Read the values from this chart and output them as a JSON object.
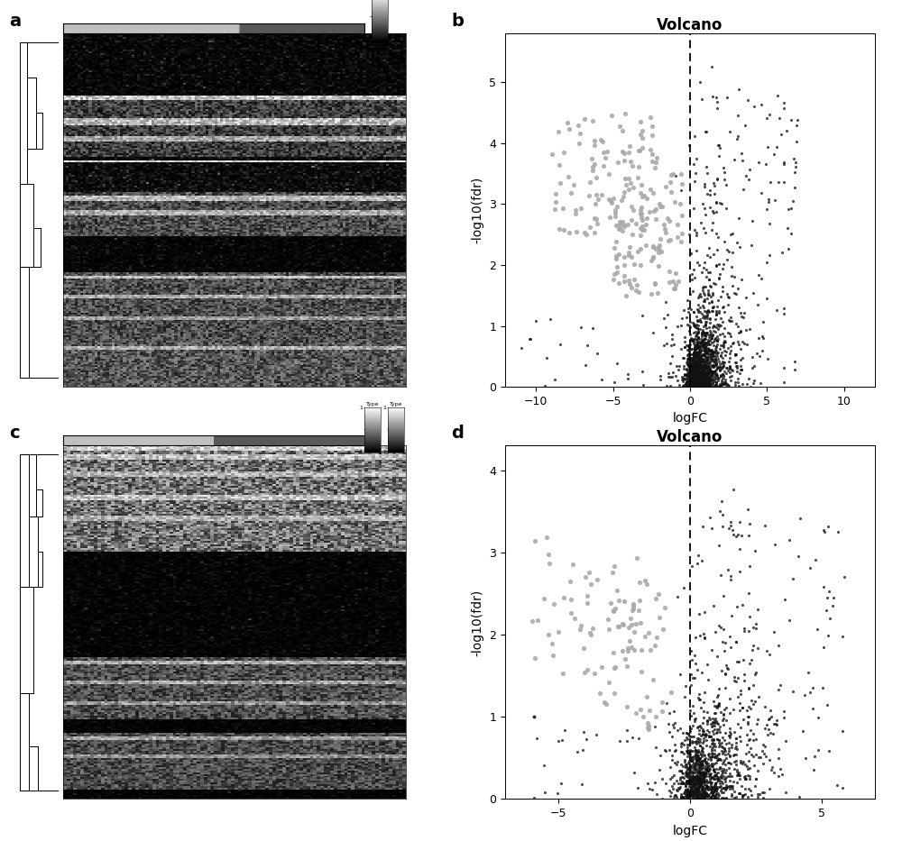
{
  "panel_labels": [
    "a",
    "b",
    "c",
    "d"
  ],
  "volcano_b": {
    "title": "Volcano",
    "xlabel": "logFC",
    "ylabel": "-log10(fdr)",
    "xlim": [
      -12,
      12
    ],
    "ylim": [
      0,
      5.8
    ],
    "xticks": [
      -10,
      -5,
      0,
      5,
      10
    ],
    "yticks": [
      0,
      1,
      2,
      3,
      4,
      5
    ],
    "dashed_x": 0
  },
  "volcano_d": {
    "title": "Volcano",
    "xlabel": "logFC",
    "ylabel": "-log10(fdr)",
    "xlim": [
      -7,
      7
    ],
    "ylim": [
      0,
      4.3
    ],
    "xticks": [
      -5,
      0,
      5
    ],
    "yticks": [
      0,
      1,
      2,
      3,
      4
    ],
    "dashed_x": 0
  },
  "bg_color": "#ffffff",
  "dark_dot_color": "#111111",
  "gray_dot_color": "#aaaaaa",
  "label_fontsize": 14,
  "axis_fontsize": 10,
  "title_fontsize": 12,
  "tick_fontsize": 9
}
